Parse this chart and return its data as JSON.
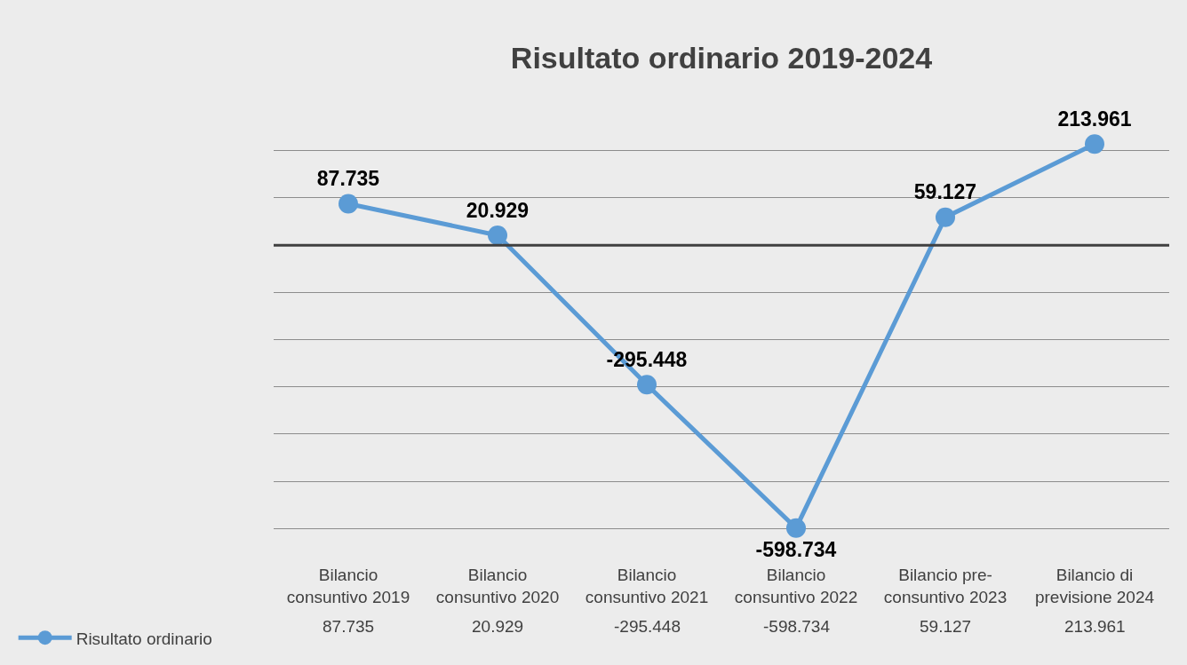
{
  "chart_data": {
    "type": "line",
    "title": "Risultato ordinario 2019-2024",
    "categories": [
      "Bilancio consuntivo 2019",
      "Bilancio consuntivo 2020",
      "Bilancio consuntivo 2021",
      "Bilancio consuntivo 2022",
      "Bilancio pre-consuntivo 2023",
      "Bilancio di previsione 2024"
    ],
    "series": [
      {
        "name": "Risultato ordinario",
        "color": "#5b9bd5",
        "values": [
          87735,
          20929,
          -295448,
          -598734,
          59127,
          213961
        ],
        "value_labels": [
          "87.735",
          "20.929",
          "-295.448",
          "-598.734",
          "59.127",
          "213.961"
        ]
      }
    ],
    "ref_lines": [
      {
        "axis": "y",
        "value": 0,
        "color": "#404040"
      }
    ],
    "grid": "y",
    "legend": "bottom left",
    "marker": "circle",
    "line_style": "solid",
    "tick_labels": "x"
  }
}
